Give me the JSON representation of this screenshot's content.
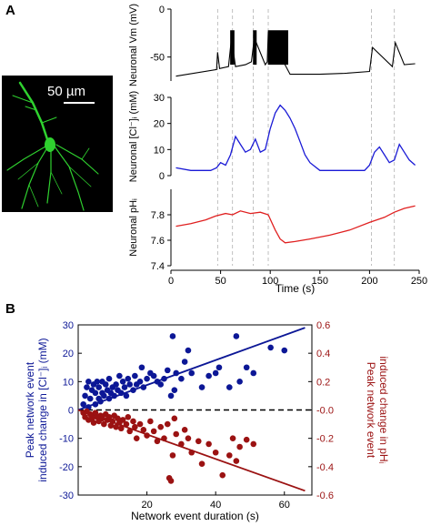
{
  "panel_labels": [
    "A",
    "B"
  ],
  "scale_bar": "50 µm",
  "colors": {
    "vm": "#000000",
    "cl": "#1a1ad6",
    "ph": "#e02020",
    "scatter_cl": "#0c1796",
    "scatter_ph": "#9b1212",
    "micro_bg": "#000000",
    "neuron": "#2fd22f"
  },
  "chart_data": [
    {
      "type": "line",
      "panel": "A",
      "ylabel": "Neuronal Vm (mV)",
      "ylim": [
        -75,
        0
      ],
      "yticks": [
        "0",
        "-50"
      ],
      "ytick_values": [
        0,
        -50
      ],
      "xlim": [
        0,
        250
      ],
      "event_times": [
        47,
        62,
        83,
        98,
        202,
        225
      ],
      "series": [
        {
          "x": [
            5,
            46,
            47,
            49,
            58,
            61,
            65,
            75,
            81,
            84,
            95,
            97,
            98,
            120,
            150,
            175,
            200,
            203,
            223,
            226,
            235,
            246
          ],
          "values": [
            -70,
            -63,
            -45,
            -62,
            -60,
            -30,
            -60,
            -58,
            -55,
            -30,
            -58,
            -55,
            -25,
            -68,
            -68,
            -67,
            -65,
            -40,
            -60,
            -35,
            -58,
            -57
          ]
        }
      ]
    },
    {
      "type": "line",
      "panel": "A",
      "ylabel": "Neuronal [Cl⁻]ᵢ (mM)",
      "ylim": [
        0,
        30
      ],
      "yticks": [
        "0",
        "10",
        "20",
        "30"
      ],
      "ytick_values": [
        0,
        10,
        20,
        30
      ],
      "xlim": [
        0,
        250
      ],
      "series": [
        {
          "x": [
            5,
            20,
            40,
            46,
            50,
            55,
            60,
            65,
            70,
            75,
            80,
            85,
            90,
            95,
            100,
            105,
            110,
            115,
            120,
            125,
            130,
            135,
            140,
            150,
            165,
            180,
            195,
            200,
            205,
            210,
            215,
            220,
            225,
            230,
            235,
            240,
            246
          ],
          "values": [
            3,
            2,
            2,
            3,
            5,
            4,
            8,
            15,
            12,
            9,
            10,
            14,
            9,
            10,
            18,
            24,
            27,
            25,
            22,
            18,
            13,
            8,
            5,
            2,
            2,
            2,
            2,
            4,
            9,
            11,
            8,
            5,
            6,
            12,
            9,
            6,
            4
          ]
        }
      ]
    },
    {
      "type": "line",
      "panel": "A",
      "ylabel": "Neuronal pHᵢ",
      "xlabel": "Time (s)",
      "ylim": [
        7.4,
        8.0
      ],
      "yticks": [
        "7.4",
        "7.6",
        "7.8"
      ],
      "ytick_values": [
        7.4,
        7.6,
        7.8
      ],
      "xlim": [
        0,
        250
      ],
      "xticks": [
        "0",
        "50",
        "100",
        "150",
        "200",
        "250"
      ],
      "xtick_values": [
        0,
        50,
        100,
        150,
        200,
        250
      ],
      "series": [
        {
          "x": [
            5,
            20,
            35,
            45,
            55,
            62,
            70,
            80,
            90,
            98,
            105,
            110,
            115,
            125,
            140,
            160,
            180,
            200,
            215,
            225,
            235,
            246
          ],
          "values": [
            7.71,
            7.73,
            7.76,
            7.79,
            7.81,
            7.8,
            7.83,
            7.81,
            7.82,
            7.8,
            7.68,
            7.61,
            7.58,
            7.59,
            7.61,
            7.64,
            7.68,
            7.74,
            7.78,
            7.82,
            7.85,
            7.87
          ]
        }
      ]
    },
    {
      "type": "scatter",
      "panel": "B",
      "xlabel": "Network event duration (s)",
      "ylabel": "Peak network event induced change in [Cl⁻]ᵢ (mM)",
      "ylabel2": "Peak network event induced change in pHᵢ",
      "xlim": [
        0,
        68
      ],
      "ylim": [
        -30,
        30
      ],
      "ylim2": [
        -0.6,
        0.6
      ],
      "xticks": [
        "20",
        "40",
        "60"
      ],
      "xtick_values": [
        20,
        40,
        60
      ],
      "yticks": [
        "30",
        "20",
        "10",
        "0",
        "-10",
        "-20",
        "-30"
      ],
      "ytick_values": [
        30,
        20,
        10,
        0,
        -10,
        -20,
        -30
      ],
      "yticks2": [
        "0.6",
        "0.4",
        "0.2",
        "-0.0",
        "-0.2",
        "-0.4",
        "-0.6"
      ],
      "ytick_values2": [
        0.6,
        0.4,
        0.2,
        0,
        -0.2,
        -0.4,
        -0.6
      ],
      "zero_line": "dashed",
      "series": [
        {
          "axis": "left",
          "points": [
            [
              1.5,
              2
            ],
            [
              2,
              5
            ],
            [
              2.5,
              8
            ],
            [
              3,
              1
            ],
            [
              3,
              10
            ],
            [
              3.5,
              4
            ],
            [
              4,
              7
            ],
            [
              4.5,
              9
            ],
            [
              5,
              2
            ],
            [
              5,
              6
            ],
            [
              5.5,
              10
            ],
            [
              6,
              4
            ],
            [
              6,
              8
            ],
            [
              6.5,
              3
            ],
            [
              7,
              6
            ],
            [
              7,
              10
            ],
            [
              7.5,
              5
            ],
            [
              8,
              9
            ],
            [
              8.5,
              7
            ],
            [
              9,
              4
            ],
            [
              9,
              11
            ],
            [
              9.5,
              6
            ],
            [
              10,
              8
            ],
            [
              10.5,
              5
            ],
            [
              11,
              9
            ],
            [
              11.5,
              7
            ],
            [
              12,
              12
            ],
            [
              12.5,
              6
            ],
            [
              13,
              10
            ],
            [
              13.5,
              8
            ],
            [
              14,
              5
            ],
            [
              14.5,
              11
            ],
            [
              15,
              9
            ],
            [
              16,
              7
            ],
            [
              16.5,
              12
            ],
            [
              17,
              9
            ],
            [
              18,
              10
            ],
            [
              18.5,
              15
            ],
            [
              19,
              8
            ],
            [
              20,
              11
            ],
            [
              21,
              13
            ],
            [
              22,
              12
            ],
            [
              23,
              10
            ],
            [
              24,
              9
            ],
            [
              25,
              11
            ],
            [
              26,
              14
            ],
            [
              27,
              5
            ],
            [
              27.5,
              26
            ],
            [
              28,
              7
            ],
            [
              28.5,
              13
            ],
            [
              30,
              11
            ],
            [
              31,
              17
            ],
            [
              32,
              21
            ],
            [
              33,
              13
            ],
            [
              36,
              8
            ],
            [
              38,
              12
            ],
            [
              40,
              13
            ],
            [
              41,
              15
            ],
            [
              44,
              8
            ],
            [
              46,
              26
            ],
            [
              47,
              10
            ],
            [
              49,
              15
            ],
            [
              51,
              13
            ],
            [
              56,
              22
            ],
            [
              60,
              21
            ]
          ],
          "fit": [
            [
              0,
              0
            ],
            [
              66,
              29
            ]
          ]
        },
        {
          "axis": "right",
          "points": [
            [
              1.5,
              -0.02
            ],
            [
              2,
              -0.05
            ],
            [
              2.5,
              -0.01
            ],
            [
              3,
              -0.07
            ],
            [
              3.5,
              -0.03
            ],
            [
              4,
              -0.06
            ],
            [
              4.5,
              -0.09
            ],
            [
              5,
              -0.02
            ],
            [
              5.5,
              -0.05
            ],
            [
              6,
              -0.08
            ],
            [
              6.5,
              -0.04
            ],
            [
              7,
              -0.06
            ],
            [
              7.5,
              -0.1
            ],
            [
              8,
              -0.03
            ],
            [
              8.5,
              -0.07
            ],
            [
              9,
              -0.05
            ],
            [
              9.5,
              -0.11
            ],
            [
              10,
              -0.08
            ],
            [
              10.5,
              -0.04
            ],
            [
              11,
              -0.12
            ],
            [
              11.5,
              -0.06
            ],
            [
              12,
              -0.09
            ],
            [
              12.5,
              -0.13
            ],
            [
              13,
              -0.07
            ],
            [
              14,
              -0.1
            ],
            [
              14.5,
              -0.05
            ],
            [
              15,
              -0.15
            ],
            [
              16,
              -0.08
            ],
            [
              16.5,
              -0.12
            ],
            [
              17,
              -0.2
            ],
            [
              18,
              -0.1
            ],
            [
              19,
              -0.14
            ],
            [
              20,
              -0.18
            ],
            [
              21,
              -0.08
            ],
            [
              22,
              -0.15
            ],
            [
              23,
              -0.22
            ],
            [
              24,
              -0.12
            ],
            [
              25,
              -0.2
            ],
            [
              26,
              -0.1
            ],
            [
              26.5,
              -0.48
            ],
            [
              27,
              -0.5
            ],
            [
              27.5,
              -0.32
            ],
            [
              28,
              -0.06
            ],
            [
              28.5,
              -0.17
            ],
            [
              30,
              -0.24
            ],
            [
              31,
              -0.14
            ],
            [
              32,
              -0.2
            ],
            [
              33,
              -0.3
            ],
            [
              35,
              -0.22
            ],
            [
              36,
              -0.38
            ],
            [
              38,
              -0.24
            ],
            [
              40,
              -0.3
            ],
            [
              42,
              -0.46
            ],
            [
              44,
              -0.32
            ],
            [
              45,
              -0.2
            ],
            [
              46,
              -0.36
            ],
            [
              47,
              -0.26
            ],
            [
              49,
              -0.21
            ],
            [
              51,
              -0.24
            ]
          ],
          "fit": [
            [
              0,
              0
            ],
            [
              66,
              -0.57
            ]
          ]
        }
      ]
    }
  ]
}
